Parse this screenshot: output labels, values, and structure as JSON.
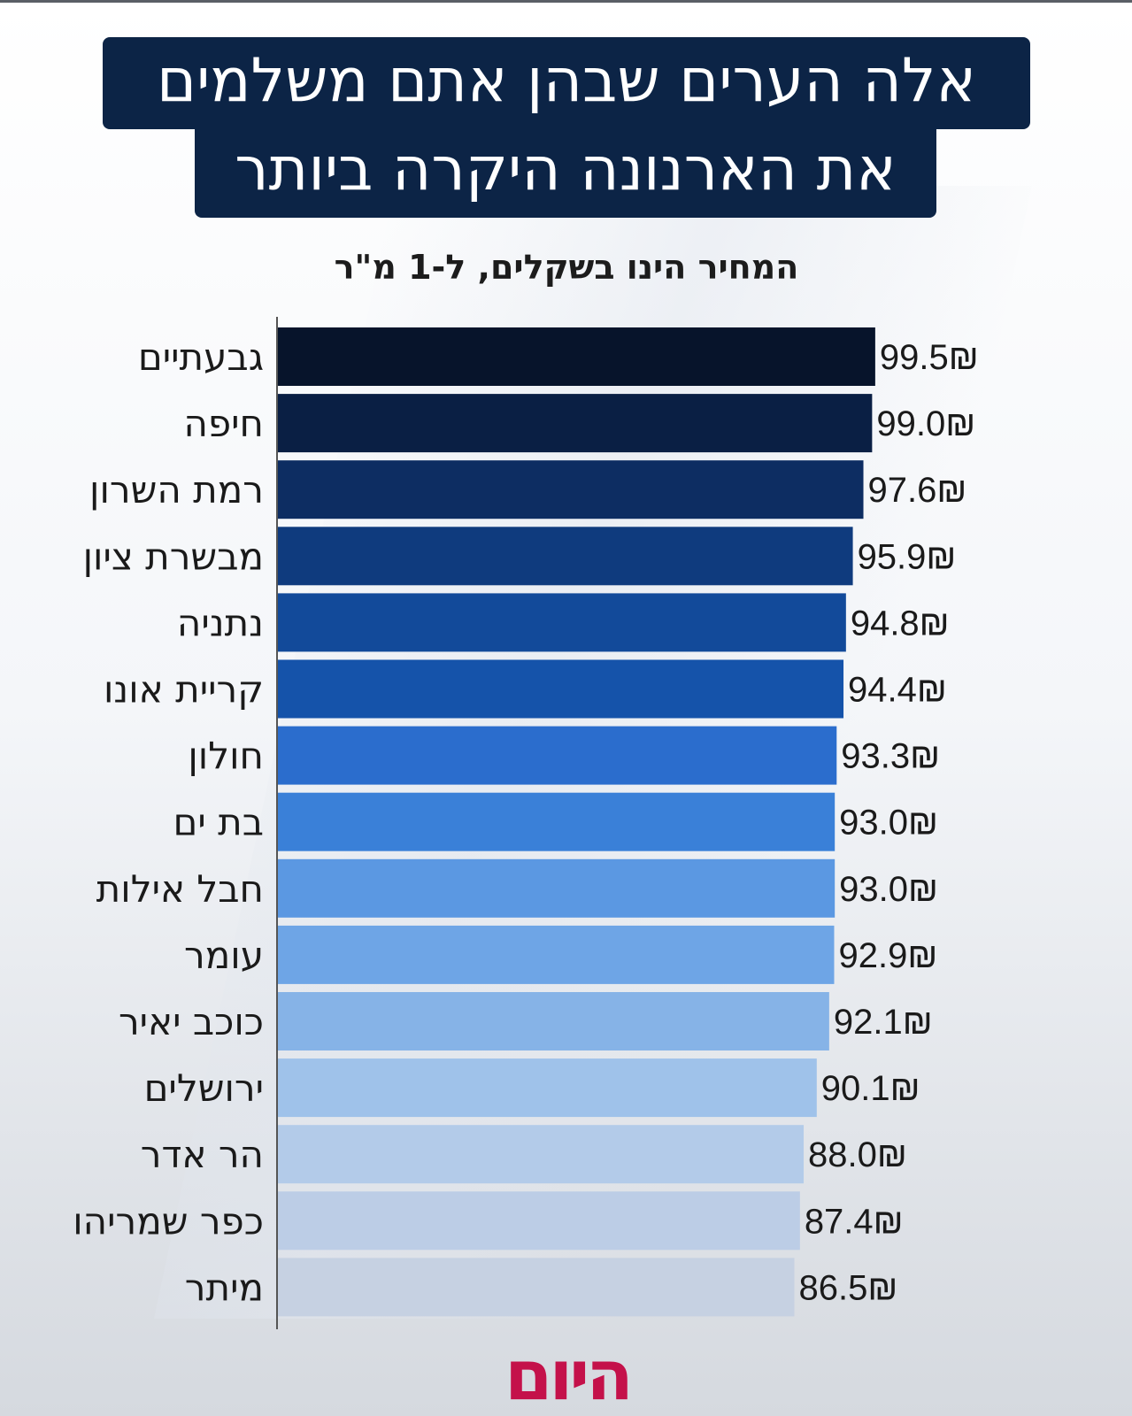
{
  "header": {
    "title_line1": "אלה הערים שבהן אתם משלמים",
    "title_line2": "את הארנונה היקרה ביותר",
    "subtitle": "המחיר הינו בשקלים, ל-1 מ\"ר"
  },
  "currency_symbol": "₪",
  "logo": {
    "text": "היום"
  },
  "colors": {
    "title_bg": "#0c2446",
    "logo": "#c4114a",
    "bars": [
      "#07142b",
      "#0a1f44",
      "#0d2d62",
      "#0f3b7e",
      "#124a9a",
      "#1553aa",
      "#2b6dcd",
      "#3a80d8",
      "#5b98e2",
      "#6ea5e6",
      "#86b3e7",
      "#9fc2ea",
      "#b3cbe9",
      "#bccde6",
      "#c6d1e2"
    ]
  },
  "chart_data": {
    "type": "bar",
    "orientation": "horizontal",
    "categories": [
      "גבעתיים",
      "חיפה",
      "רמת השרון",
      "מבשרת ציון",
      "נתניה",
      "קריית אונו",
      "חולון",
      "בת ים",
      "חבל אילות",
      "עומר",
      "כוכב יאיר",
      "ירושלים",
      "הר אדר",
      "כפר שמריהו",
      "מיתר"
    ],
    "values": [
      99.5,
      99.0,
      97.6,
      95.9,
      94.8,
      94.4,
      93.3,
      93.0,
      93.0,
      92.9,
      92.1,
      90.1,
      88.0,
      87.4,
      86.5
    ],
    "value_labels": [
      "99.5₪",
      "99.0₪",
      "97.6₪",
      "95.9₪",
      "94.8₪",
      "94.4₪",
      "93.3₪",
      "93.0₪",
      "93.0₪",
      "92.9₪",
      "92.1₪",
      "90.1₪",
      "88.0₪",
      "87.4₪",
      "86.5₪"
    ],
    "title": "אלה הערים שבהן אתם משלמים את הארנונה היקרה ביותר",
    "subtitle": "המחיר הינו בשקלים, ל-1 מ\"ר",
    "xlabel": "",
    "ylabel": "",
    "unit": "₪",
    "grid": false,
    "legend": "none"
  }
}
